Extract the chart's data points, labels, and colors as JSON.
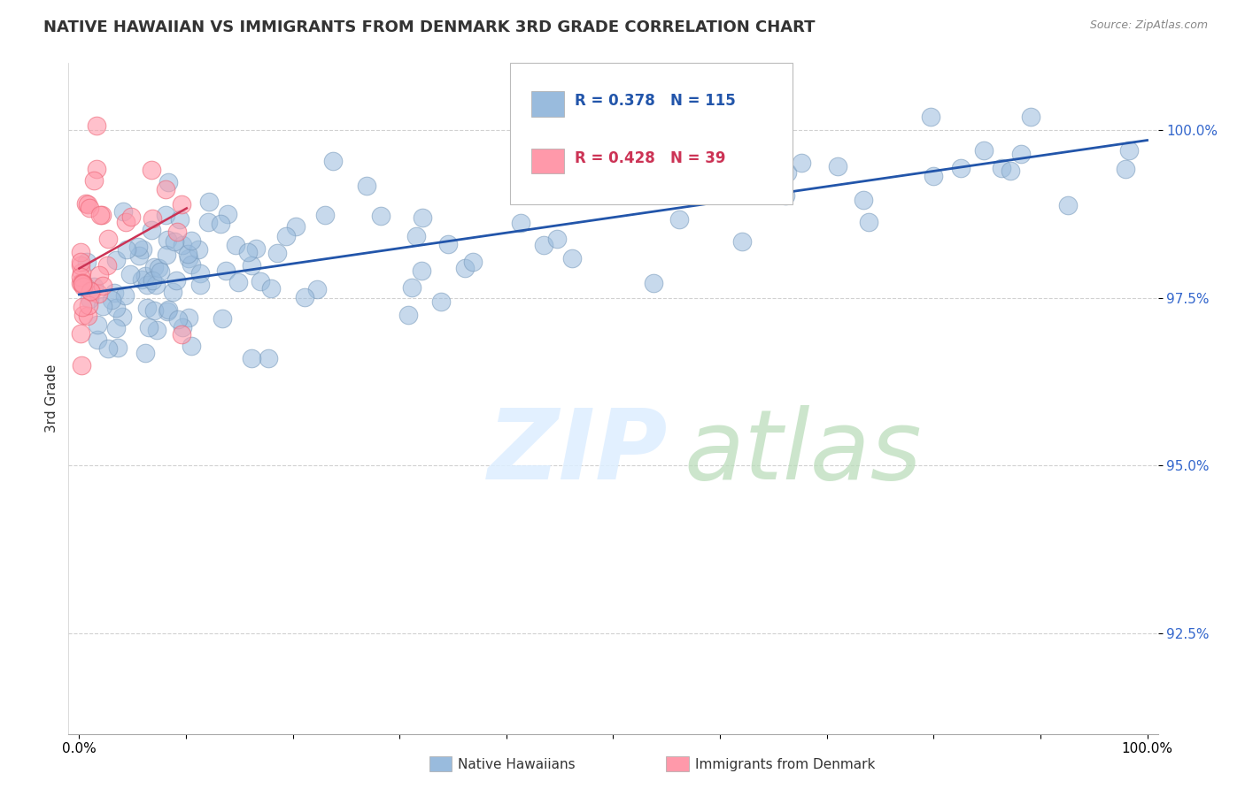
{
  "title": "NATIVE HAWAIIAN VS IMMIGRANTS FROM DENMARK 3RD GRADE CORRELATION CHART",
  "source": "Source: ZipAtlas.com",
  "ylabel": "3rd Grade",
  "xlim": [
    -0.01,
    1.01
  ],
  "ylim": [
    0.91,
    1.01
  ],
  "yticks": [
    0.925,
    0.95,
    0.975,
    1.0
  ],
  "ytick_labels": [
    "92.5%",
    "95.0%",
    "97.5%",
    "100.0%"
  ],
  "xtick_labels": [
    "0.0%",
    "",
    "",
    "",
    "",
    "",
    "",
    "",
    "",
    "",
    "100.0%"
  ],
  "blue_R": 0.378,
  "blue_N": 115,
  "pink_R": 0.428,
  "pink_N": 39,
  "blue_color": "#99BBDD",
  "pink_color": "#FF99AA",
  "blue_edge_color": "#7799BB",
  "pink_edge_color": "#EE6677",
  "blue_line_color": "#2255AA",
  "pink_line_color": "#CC3355",
  "legend_blue": "Native Hawaiians",
  "legend_pink": "Immigrants from Denmark",
  "watermark_zip_color": "#DDDDEE",
  "watermark_atlas_color": "#AACCAA",
  "title_color": "#333333",
  "source_color": "#888888",
  "ytick_color": "#3366CC",
  "grid_color": "#CCCCCC"
}
